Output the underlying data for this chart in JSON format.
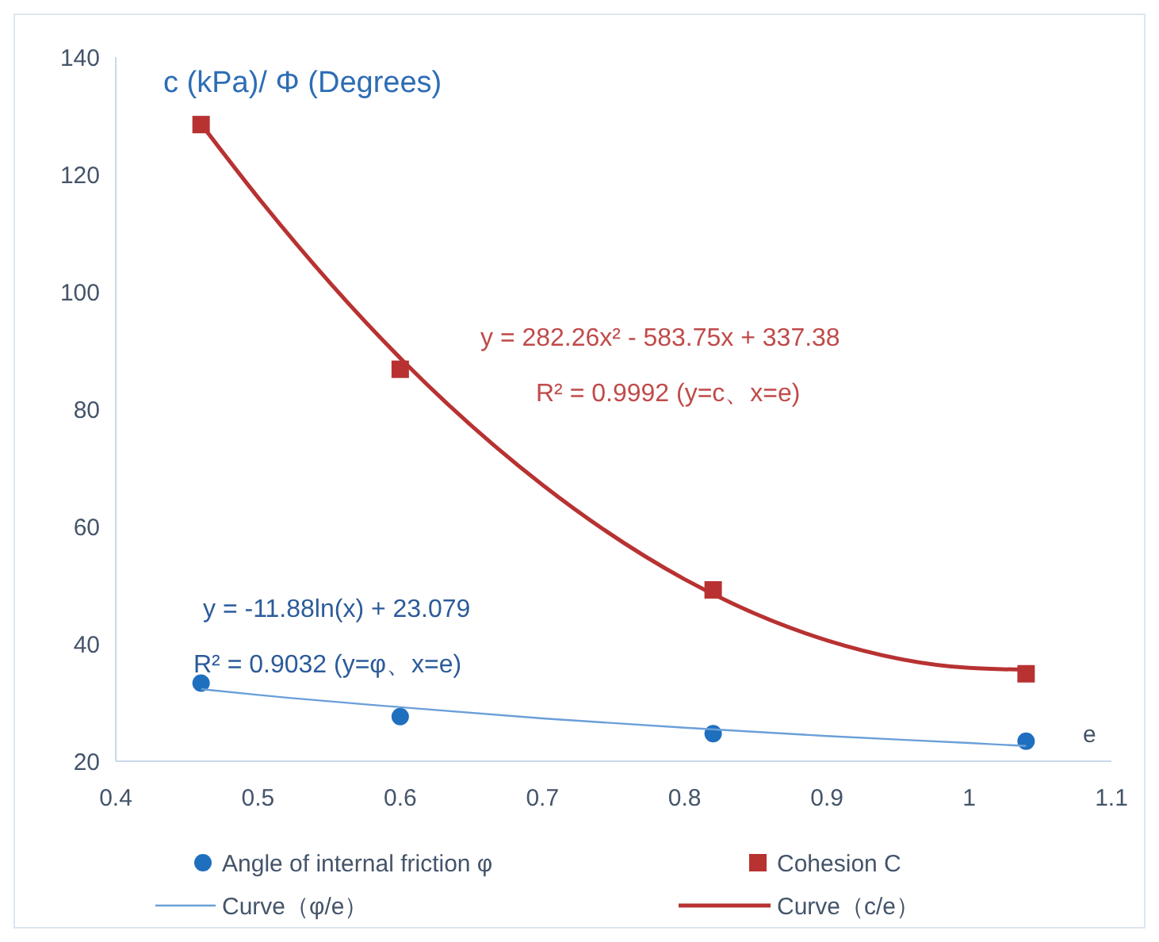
{
  "chart_data": {
    "type": "scatter",
    "ylabel": "c (kPa)/ Φ (Degrees)",
    "xlabel": "e",
    "xlim": [
      0.4,
      1.1
    ],
    "xticks": [
      0.4,
      0.5,
      0.6,
      0.7,
      0.8,
      0.9,
      1,
      1.1
    ],
    "ylim": [
      20,
      140
    ],
    "yticks": [
      20,
      40,
      60,
      80,
      100,
      120,
      140
    ],
    "grid": false,
    "legend": "bottom",
    "series": [
      {
        "name": "Angle of internal friction φ",
        "marker": "circle",
        "color": "#1f6fbf",
        "x": [
          0.46,
          0.6,
          0.82,
          1.04
        ],
        "values": [
          33.3,
          27.6,
          24.7,
          23.4
        ]
      },
      {
        "name": "Cohesion C",
        "marker": "square",
        "color": "#b83232",
        "x": [
          0.46,
          0.6,
          0.82,
          1.04
        ],
        "values": [
          128.5,
          86.8,
          49.2,
          34.9
        ]
      },
      {
        "name": "Curve（φ/e）",
        "type": "line",
        "marker": "none",
        "line_style": "solid",
        "color": "#6a9fd8",
        "x": [
          0.46,
          0.5,
          0.6,
          0.7,
          0.8,
          0.9,
          1.0,
          1.04
        ],
        "values": [
          32.3,
          31.3,
          29.2,
          27.3,
          25.7,
          24.3,
          23.1,
          22.6
        ]
      },
      {
        "name": "Curve（c/e）",
        "type": "line",
        "marker": "none",
        "line_style": "solid",
        "color": "#b83232",
        "x": [
          0.46,
          0.5,
          0.6,
          0.7,
          0.8,
          0.9,
          1.0,
          1.04
        ],
        "values": [
          128.6,
          116.1,
          88.7,
          67.1,
          51,
          40.6,
          35.9,
          35.6
        ]
      }
    ],
    "annotations": [
      "y = 282.26x² - 583.75x + 337.38",
      "R² = 0.9992  (y=c、x=e)",
      "y = -11.88ln(x) + 23.079",
      "R² = 0.9032  (y=φ、x=e)"
    ]
  }
}
